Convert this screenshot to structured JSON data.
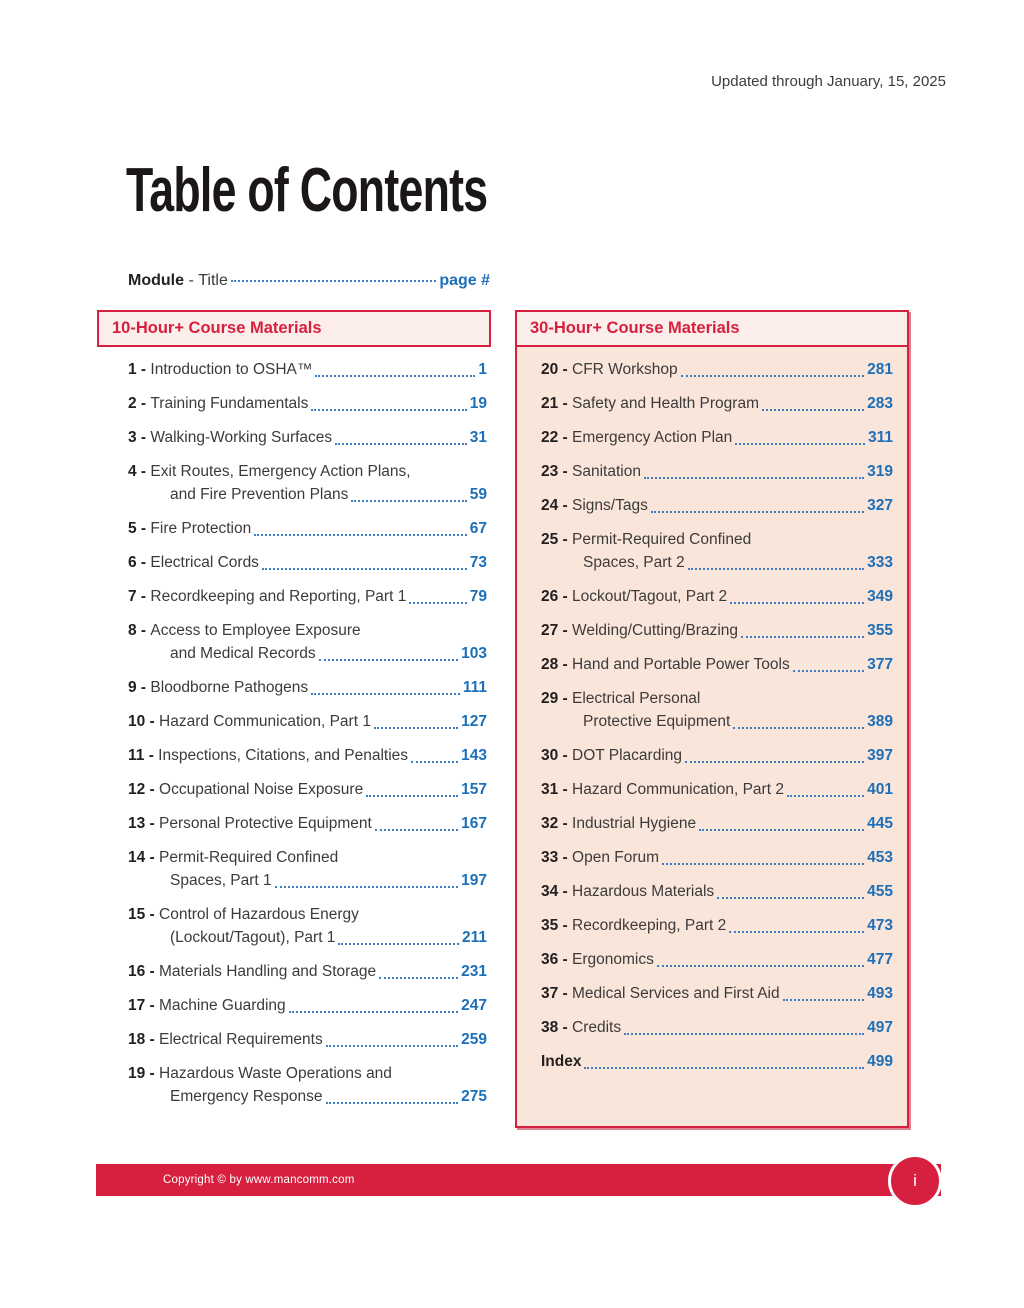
{
  "header": {
    "updated": "Updated through January, 15, 2025"
  },
  "page_title": "Table of Contents",
  "legend": {
    "module_label": "Module",
    "separator": " - ",
    "title_label": "Title",
    "page_label": "page #"
  },
  "columns": [
    {
      "header": "10-Hour+ Course Materials",
      "items": [
        {
          "num": "1",
          "lines": [
            "Introduction to OSHA™"
          ],
          "page": "1"
        },
        {
          "num": "2",
          "lines": [
            "Training Fundamentals"
          ],
          "page": "19"
        },
        {
          "num": "3",
          "lines": [
            "Walking-Working Surfaces"
          ],
          "page": "31"
        },
        {
          "num": "4",
          "lines": [
            "Exit Routes, Emergency Action Plans,",
            "and Fire Prevention Plans"
          ],
          "page": "59"
        },
        {
          "num": "5",
          "lines": [
            "Fire Protection"
          ],
          "page": "67"
        },
        {
          "num": "6",
          "lines": [
            "Electrical Cords"
          ],
          "page": "73"
        },
        {
          "num": "7",
          "lines": [
            "Recordkeeping and Reporting, Part 1"
          ],
          "page": "79"
        },
        {
          "num": "8",
          "lines": [
            "Access to Employee Exposure",
            "and Medical Records"
          ],
          "page": "103"
        },
        {
          "num": "9",
          "lines": [
            "Bloodborne Pathogens"
          ],
          "page": "111"
        },
        {
          "num": "10",
          "lines": [
            "Hazard Communication, Part 1"
          ],
          "page": "127"
        },
        {
          "num": "11",
          "lines": [
            "Inspections, Citations, and Penalties"
          ],
          "page": "143"
        },
        {
          "num": "12",
          "lines": [
            "Occupational Noise Exposure"
          ],
          "page": "157"
        },
        {
          "num": "13",
          "lines": [
            "Personal Protective Equipment"
          ],
          "page": "167"
        },
        {
          "num": "14",
          "lines": [
            "Permit-Required Confined",
            "Spaces, Part 1"
          ],
          "page": "197"
        },
        {
          "num": "15",
          "lines": [
            "Control of Hazardous Energy",
            "(Lockout/Tagout), Part 1"
          ],
          "page": "211"
        },
        {
          "num": "16",
          "lines": [
            "Materials Handling and Storage"
          ],
          "page": "231"
        },
        {
          "num": "17",
          "lines": [
            "Machine Guarding"
          ],
          "page": "247"
        },
        {
          "num": "18",
          "lines": [
            "Electrical Requirements"
          ],
          "page": "259"
        },
        {
          "num": "19",
          "lines": [
            "Hazardous Waste Operations and",
            "Emergency Response"
          ],
          "page": "275"
        }
      ]
    },
    {
      "header": "30-Hour+ Course Materials",
      "items": [
        {
          "num": "20",
          "lines": [
            "CFR Workshop"
          ],
          "page": "281"
        },
        {
          "num": "21",
          "lines": [
            "Safety and Health Program"
          ],
          "page": "283"
        },
        {
          "num": "22",
          "lines": [
            "Emergency Action Plan"
          ],
          "page": "311"
        },
        {
          "num": "23",
          "lines": [
            "Sanitation"
          ],
          "page": "319"
        },
        {
          "num": "24",
          "lines": [
            "Signs/Tags"
          ],
          "page": "327"
        },
        {
          "num": "25",
          "lines": [
            "Permit-Required Confined",
            "Spaces, Part 2"
          ],
          "page": "333"
        },
        {
          "num": "26",
          "lines": [
            "Lockout/Tagout, Part 2"
          ],
          "page": "349"
        },
        {
          "num": "27",
          "lines": [
            "Welding/Cutting/Brazing"
          ],
          "page": "355"
        },
        {
          "num": "28",
          "lines": [
            "Hand and Portable Power Tools"
          ],
          "page": "377"
        },
        {
          "num": "29",
          "lines": [
            "Electrical Personal",
            "Protective Equipment"
          ],
          "page": "389"
        },
        {
          "num": "30",
          "lines": [
            "DOT Placarding"
          ],
          "page": "397"
        },
        {
          "num": "31",
          "lines": [
            "Hazard Communication, Part 2"
          ],
          "page": "401"
        },
        {
          "num": "32",
          "lines": [
            "Industrial Hygiene"
          ],
          "page": "445"
        },
        {
          "num": "33",
          "lines": [
            "Open Forum"
          ],
          "page": "453"
        },
        {
          "num": "34",
          "lines": [
            "Hazardous Materials"
          ],
          "page": "455"
        },
        {
          "num": "35",
          "lines": [
            "Recordkeeping, Part 2"
          ],
          "page": "473"
        },
        {
          "num": "36",
          "lines": [
            "Ergonomics"
          ],
          "page": "477"
        },
        {
          "num": "37",
          "lines": [
            "Medical Services and First Aid"
          ],
          "page": "493"
        },
        {
          "num": "38",
          "lines": [
            "Credits"
          ],
          "page": "497"
        },
        {
          "num": null,
          "lines": [
            "Index"
          ],
          "page": "499"
        }
      ]
    }
  ],
  "footer": {
    "copyright": "Copyright © by www.mancomm.com",
    "page_number": "i"
  },
  "colors": {
    "accent_red": "#d7203f",
    "page_number_blue": "#1d6fb8",
    "leader_dot_blue": "#3f7ec2",
    "header_band_pink": "#fceeea",
    "column_fill_peach": "#f9e5da"
  }
}
